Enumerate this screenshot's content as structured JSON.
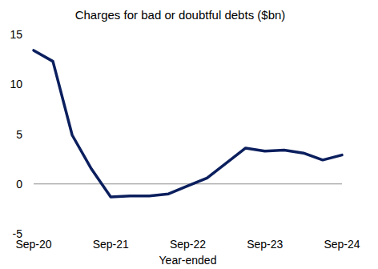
{
  "chart_data": {
    "type": "line",
    "title": "Charges for bad or doubtful debts ($bn)",
    "x_label": "Year-ended",
    "categories": [
      "Sep-20",
      null,
      null,
      null,
      "Sep-21",
      null,
      null,
      null,
      "Sep-22",
      null,
      null,
      null,
      "Sep-23",
      null,
      null,
      null,
      "Sep-24"
    ],
    "values": [
      13.4,
      12.3,
      4.9,
      1.5,
      -1.3,
      -1.2,
      -1.2,
      -1.0,
      -0.2,
      0.6,
      2.1,
      3.6,
      3.3,
      3.4,
      3.1,
      2.4,
      2.9
    ],
    "color": "#0b1f5e",
    "ylim": [
      -5,
      15
    ],
    "yticks": [
      -5,
      0,
      5,
      10,
      15
    ],
    "grid": false
  }
}
